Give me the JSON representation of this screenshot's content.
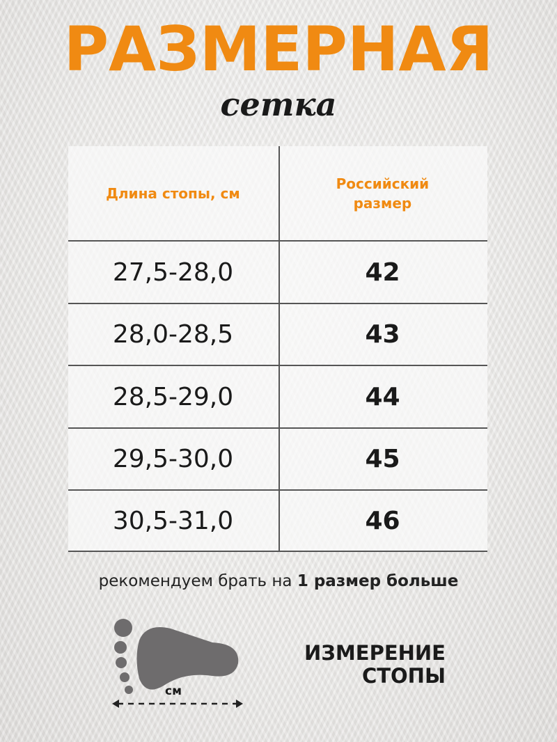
{
  "header": {
    "title": "РАЗМЕРНАЯ",
    "subtitle": "сетка"
  },
  "table": {
    "columns": [
      "Длина стопы, см",
      "Российский размер"
    ],
    "rows": [
      {
        "length": "27,5-28,0",
        "size": "42"
      },
      {
        "length": "28,0-28,5",
        "size": "43"
      },
      {
        "length": "28,5-29,0",
        "size": "44"
      },
      {
        "length": "29,5-30,0",
        "size": "45"
      },
      {
        "length": "30,5-31,0",
        "size": "46"
      }
    ]
  },
  "note": {
    "text": "рекомендуем брать на ",
    "bold": "1 размер больше"
  },
  "measure": {
    "unit": "см",
    "line1": "ИЗМЕРЕНИЕ",
    "line2": "СТОПЫ",
    "icon": "foot-icon"
  },
  "colors": {
    "accent": "#f08a12",
    "text": "#1a1a1a",
    "foot": "#6e6c6d"
  }
}
